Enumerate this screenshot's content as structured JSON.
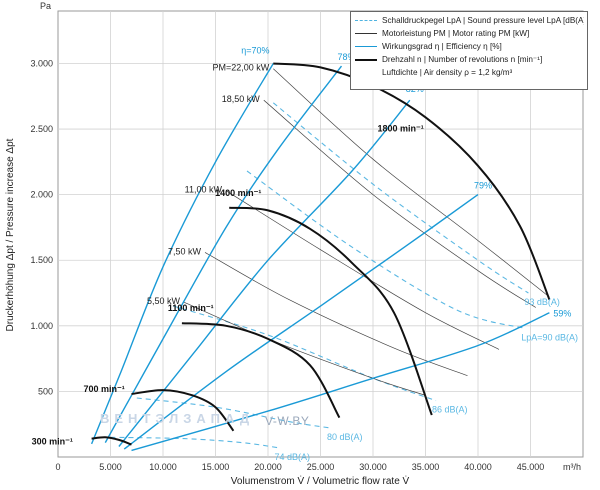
{
  "chart_data": {
    "type": "line",
    "x_unit": "m³/h",
    "y_unit": "Pa",
    "xlabel": "Volumenstrom V̇ / Volumetric flow rate V̇",
    "ylabel": "Druckerhöhung Δpt / Pressure increase Δpt",
    "xlim": [
      0,
      50000
    ],
    "ylim": [
      0,
      3400
    ],
    "x_ticks": [
      0,
      5000,
      10000,
      15000,
      20000,
      25000,
      30000,
      35000,
      40000,
      45000
    ],
    "x_tick_labels": [
      "0",
      "5.000",
      "10.000",
      "15.000",
      "20.000",
      "25.000",
      "30.000",
      "35.000",
      "40.000",
      "45.000"
    ],
    "y_ticks": [
      500,
      1000,
      1500,
      2000,
      2500,
      3000
    ],
    "y_tick_labels": [
      "500",
      "1.000",
      "1.500",
      "2.000",
      "2.500",
      "3.000"
    ],
    "grid": true,
    "legend_position": "top-right",
    "legend": [
      {
        "kind": "dash",
        "text": "Schalldruckpegel LpA | Sound pressure level LpA [dB(A)]"
      },
      {
        "kind": "thin",
        "text": "Motorleistung PM | Motor rating PM [kW]"
      },
      {
        "kind": "blue",
        "text": "Wirkungsgrad η | Efficiency η [%]"
      },
      {
        "kind": "thick",
        "text": "Drehzahl n | Number of revolutions n [min⁻¹]"
      },
      {
        "kind": "none",
        "text": "Luftdichte | Air density ρ = 1,2 kg/m³"
      }
    ],
    "speed_curves": [
      {
        "label": "300 min⁻¹",
        "points": [
          [
            3200,
            140
          ],
          [
            4500,
            150
          ],
          [
            5800,
            130
          ],
          [
            7000,
            95
          ]
        ]
      },
      {
        "label": "700 min⁻¹",
        "points": [
          [
            7000,
            480
          ],
          [
            10000,
            510
          ],
          [
            12800,
            470
          ],
          [
            15000,
            380
          ],
          [
            16700,
            200
          ]
        ]
      },
      {
        "label": "1100 min⁻¹",
        "points": [
          [
            11800,
            1020
          ],
          [
            16000,
            1000
          ],
          [
            20000,
            900
          ],
          [
            24000,
            700
          ],
          [
            26800,
            300
          ]
        ]
      },
      {
        "label": "1400 min⁻¹",
        "points": [
          [
            16300,
            1900
          ],
          [
            20000,
            1880
          ],
          [
            24000,
            1740
          ],
          [
            28000,
            1480
          ],
          [
            32000,
            1100
          ],
          [
            35600,
            320
          ]
        ]
      },
      {
        "label": "1800 min⁻¹",
        "points": [
          [
            20500,
            3000
          ],
          [
            25000,
            2970
          ],
          [
            30000,
            2830
          ],
          [
            35000,
            2590
          ],
          [
            40000,
            2220
          ],
          [
            44000,
            1760
          ],
          [
            46800,
            1200
          ]
        ]
      }
    ],
    "efficiency_lines": [
      {
        "label": "η=70%",
        "points": [
          [
            3200,
            100
          ],
          [
            6000,
            650
          ],
          [
            10000,
            1450
          ],
          [
            15000,
            2250
          ],
          [
            20500,
            3000
          ]
        ]
      },
      {
        "label": "78%",
        "points": [
          [
            4500,
            110
          ],
          [
            10000,
            900
          ],
          [
            16000,
            1750
          ],
          [
            21000,
            2350
          ],
          [
            27000,
            2980
          ]
        ]
      },
      {
        "label": "82%",
        "points": [
          [
            5800,
            80
          ],
          [
            13000,
            800
          ],
          [
            20000,
            1500
          ],
          [
            28000,
            2180
          ],
          [
            33500,
            2720
          ]
        ]
      },
      {
        "label": "79%",
        "points": [
          [
            6300,
            60
          ],
          [
            16000,
            650
          ],
          [
            25000,
            1150
          ],
          [
            33000,
            1600
          ],
          [
            40000,
            2000
          ]
        ]
      },
      {
        "label": "59%",
        "points": [
          [
            7000,
            50
          ],
          [
            20000,
            350
          ],
          [
            30000,
            600
          ],
          [
            40000,
            850
          ],
          [
            46800,
            1100
          ]
        ]
      }
    ],
    "motor_lines": [
      {
        "label": "PM=22,00 kW",
        "points": [
          [
            20500,
            2960
          ],
          [
            30000,
            2270
          ],
          [
            40000,
            1650
          ],
          [
            46800,
            1220
          ]
        ]
      },
      {
        "label": "18,50 kW",
        "points": [
          [
            19600,
            2720
          ],
          [
            30000,
            2000
          ],
          [
            40000,
            1420
          ],
          [
            45500,
            1140
          ]
        ]
      },
      {
        "label": "11,00 kW",
        "points": [
          [
            16000,
            2030
          ],
          [
            25000,
            1580
          ],
          [
            35000,
            1100
          ],
          [
            42000,
            820
          ]
        ]
      },
      {
        "label": "7,50 kW",
        "points": [
          [
            14000,
            1560
          ],
          [
            22000,
            1200
          ],
          [
            32000,
            830
          ],
          [
            39000,
            620
          ]
        ]
      },
      {
        "label": "5,50 kW",
        "points": [
          [
            12000,
            1180
          ],
          [
            20000,
            900
          ],
          [
            30000,
            600
          ],
          [
            35000,
            470
          ]
        ]
      }
    ],
    "sound_lines": [
      {
        "label": "93 dB(A)",
        "points": [
          [
            20500,
            2700
          ],
          [
            30000,
            2080
          ],
          [
            40000,
            1500
          ],
          [
            44800,
            1250
          ]
        ]
      },
      {
        "label": "LpA=90 dB(A)",
        "points": [
          [
            18000,
            2180
          ],
          [
            28000,
            1600
          ],
          [
            38000,
            1120
          ],
          [
            44500,
            980
          ]
        ]
      },
      {
        "label": "86 dB(A)",
        "points": [
          [
            11000,
            1150
          ],
          [
            20000,
            930
          ],
          [
            30000,
            600
          ],
          [
            36000,
            430
          ]
        ]
      },
      {
        "label": "80 dB(A)",
        "points": [
          [
            7500,
            450
          ],
          [
            15000,
            380
          ],
          [
            22000,
            270
          ],
          [
            26000,
            220
          ]
        ]
      },
      {
        "label": "74 dB(A)",
        "points": [
          [
            5000,
            150
          ],
          [
            12000,
            140
          ],
          [
            17500,
            110
          ],
          [
            21000,
            70
          ]
        ]
      }
    ]
  },
  "labels": {
    "y_unit": "Pa",
    "x_unit": "m³/h",
    "watermark": "ВЕНТЭЛЗАПАД",
    "watermark_site": "V-W.BY"
  }
}
